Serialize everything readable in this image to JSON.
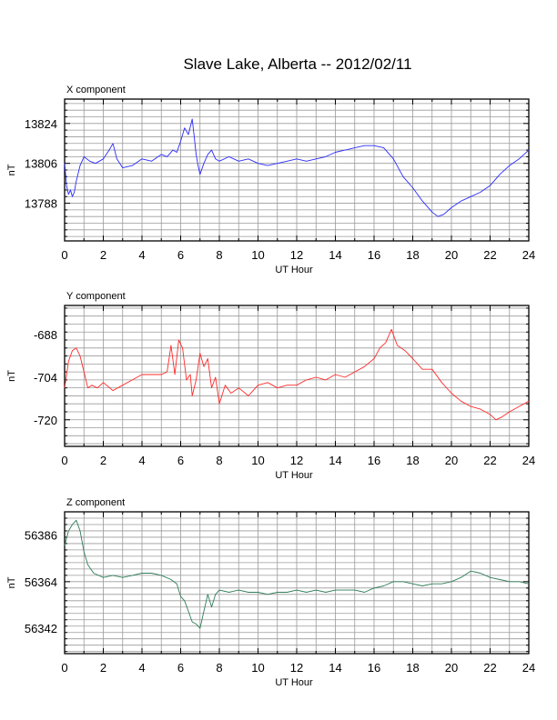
{
  "title": "Slave Lake, Alberta -- 2012/02/11",
  "chart_data": [
    {
      "type": "line",
      "title": "X component",
      "xlabel": "UT Hour",
      "ylabel": "nT",
      "xlim": [
        0,
        24
      ],
      "ylim": [
        13771,
        13835
      ],
      "xticks": [
        0,
        2,
        4,
        6,
        8,
        10,
        12,
        14,
        16,
        18,
        20,
        22,
        24
      ],
      "yticks": [
        13788,
        13806,
        13824
      ],
      "grid": true,
      "color": "#2a2aff",
      "series": [
        {
          "x": [
            0,
            0.1,
            0.2,
            0.3,
            0.4,
            0.5,
            0.6,
            0.8,
            1.0,
            1.3,
            1.6,
            2.0,
            2.3,
            2.5,
            2.7,
            3.0,
            3.5,
            4.0,
            4.5,
            5.0,
            5.3,
            5.6,
            5.8,
            6.0,
            6.2,
            6.4,
            6.6,
            6.7,
            6.8,
            6.9,
            7.0,
            7.2,
            7.4,
            7.6,
            7.8,
            8.0,
            8.5,
            9.0,
            9.5,
            10.0,
            10.5,
            11.0,
            11.5,
            12.0,
            12.5,
            13.0,
            13.5,
            14.0,
            14.5,
            15.0,
            15.5,
            16.0,
            16.5,
            17.0,
            17.5,
            18.0,
            18.5,
            19.0,
            19.3,
            19.6,
            20.0,
            20.5,
            21.0,
            21.5,
            22.0,
            22.5,
            23.0,
            23.5,
            24.0
          ],
          "values": [
            13806,
            13796,
            13792,
            13794,
            13791,
            13793,
            13798,
            13805,
            13809,
            13807,
            13806,
            13808,
            13812,
            13815,
            13808,
            13804,
            13805,
            13808,
            13807,
            13810,
            13809,
            13812,
            13811,
            13816,
            13822,
            13819,
            13826,
            13818,
            13810,
            13805,
            13801,
            13806,
            13810,
            13812,
            13808,
            13807,
            13809,
            13807,
            13808,
            13806,
            13805,
            13806,
            13807,
            13808,
            13807,
            13808,
            13809,
            13811,
            13812,
            13813,
            13814,
            13814,
            13813,
            13808,
            13800,
            13795,
            13789,
            13784,
            13782,
            13783,
            13786,
            13789,
            13791,
            13793,
            13796,
            13801,
            13805,
            13808,
            13812
          ]
        }
      ]
    },
    {
      "type": "line",
      "title": "Y component",
      "xlabel": "UT Hour",
      "ylabel": "nT",
      "xlim": [
        0,
        24
      ],
      "ylim": [
        -730,
        -677
      ],
      "xticks": [
        0,
        2,
        4,
        6,
        8,
        10,
        12,
        14,
        16,
        18,
        20,
        22,
        24
      ],
      "yticks": [
        -720,
        -704,
        -688
      ],
      "grid": true,
      "color": "#ff2a2a",
      "series": [
        {
          "x": [
            0,
            0.2,
            0.4,
            0.6,
            0.8,
            1.0,
            1.2,
            1.4,
            1.7,
            2.0,
            2.5,
            3.0,
            3.5,
            4.0,
            4.5,
            5.0,
            5.3,
            5.5,
            5.7,
            5.9,
            6.1,
            6.3,
            6.5,
            6.6,
            6.8,
            7.0,
            7.2,
            7.4,
            7.6,
            7.8,
            8.0,
            8.3,
            8.6,
            9.0,
            9.5,
            10.0,
            10.5,
            11.0,
            11.5,
            12.0,
            12.5,
            13.0,
            13.5,
            14.0,
            14.5,
            15.0,
            15.5,
            16.0,
            16.3,
            16.6,
            16.9,
            17.2,
            17.6,
            18.0,
            18.5,
            19.0,
            19.5,
            20.0,
            20.5,
            21.0,
            21.5,
            22.0,
            22.3,
            22.6,
            23.0,
            23.5,
            24.0
          ],
          "values": [
            -708,
            -698,
            -694,
            -693,
            -696,
            -702,
            -708,
            -707,
            -708,
            -706,
            -709,
            -707,
            -705,
            -703,
            -703,
            -703,
            -702,
            -692,
            -703,
            -690,
            -693,
            -705,
            -703,
            -711,
            -705,
            -695,
            -700,
            -697,
            -708,
            -704,
            -714,
            -707,
            -710,
            -708,
            -711,
            -707,
            -706,
            -708,
            -707,
            -707,
            -705,
            -704,
            -705,
            -703,
            -704,
            -702,
            -700,
            -697,
            -693,
            -691,
            -686,
            -692,
            -694,
            -697,
            -701,
            -701,
            -706,
            -710,
            -713,
            -715,
            -716,
            -718,
            -720,
            -719,
            -717,
            -715,
            -713
          ]
        }
      ]
    },
    {
      "type": "line",
      "title": "Z component",
      "xlabel": "UT Hour",
      "ylabel": "nT",
      "xlim": [
        0,
        24
      ],
      "ylim": [
        56330,
        56397
      ],
      "xticks": [
        0,
        2,
        4,
        6,
        8,
        10,
        12,
        14,
        16,
        18,
        20,
        22,
        24
      ],
      "yticks": [
        56342,
        56364,
        56386
      ],
      "grid": true,
      "color": "#2e7d57",
      "series": [
        {
          "x": [
            0,
            0.2,
            0.4,
            0.6,
            0.8,
            1.0,
            1.2,
            1.5,
            2.0,
            2.5,
            3.0,
            3.5,
            4.0,
            4.5,
            5.0,
            5.5,
            5.8,
            6.0,
            6.2,
            6.4,
            6.6,
            6.8,
            7.0,
            7.2,
            7.4,
            7.6,
            7.8,
            8.0,
            8.5,
            9.0,
            9.5,
            10.0,
            10.5,
            11.0,
            11.5,
            12.0,
            12.5,
            13.0,
            13.5,
            14.0,
            14.5,
            15.0,
            15.5,
            16.0,
            16.5,
            17.0,
            17.5,
            18.0,
            18.5,
            19.0,
            19.5,
            20.0,
            20.5,
            21.0,
            21.5,
            22.0,
            22.5,
            23.0,
            23.5,
            24.0
          ],
          "values": [
            56381,
            56388,
            56391,
            56393,
            56388,
            56378,
            56372,
            56368,
            56366,
            56367,
            56366,
            56367,
            56368,
            56368,
            56367,
            56365,
            56363,
            56357,
            56355,
            56350,
            56345,
            56344,
            56342,
            56350,
            56358,
            56352,
            56358,
            56360,
            56359,
            56360,
            56359,
            56359,
            56358,
            56359,
            56359,
            56360,
            56359,
            56360,
            56359,
            56360,
            56360,
            56360,
            56359,
            56361,
            56362,
            56364,
            56364,
            56363,
            56362,
            56363,
            56363,
            56364,
            56366,
            56369,
            56368,
            56366,
            56365,
            56364,
            56364,
            56363
          ]
        }
      ]
    }
  ]
}
